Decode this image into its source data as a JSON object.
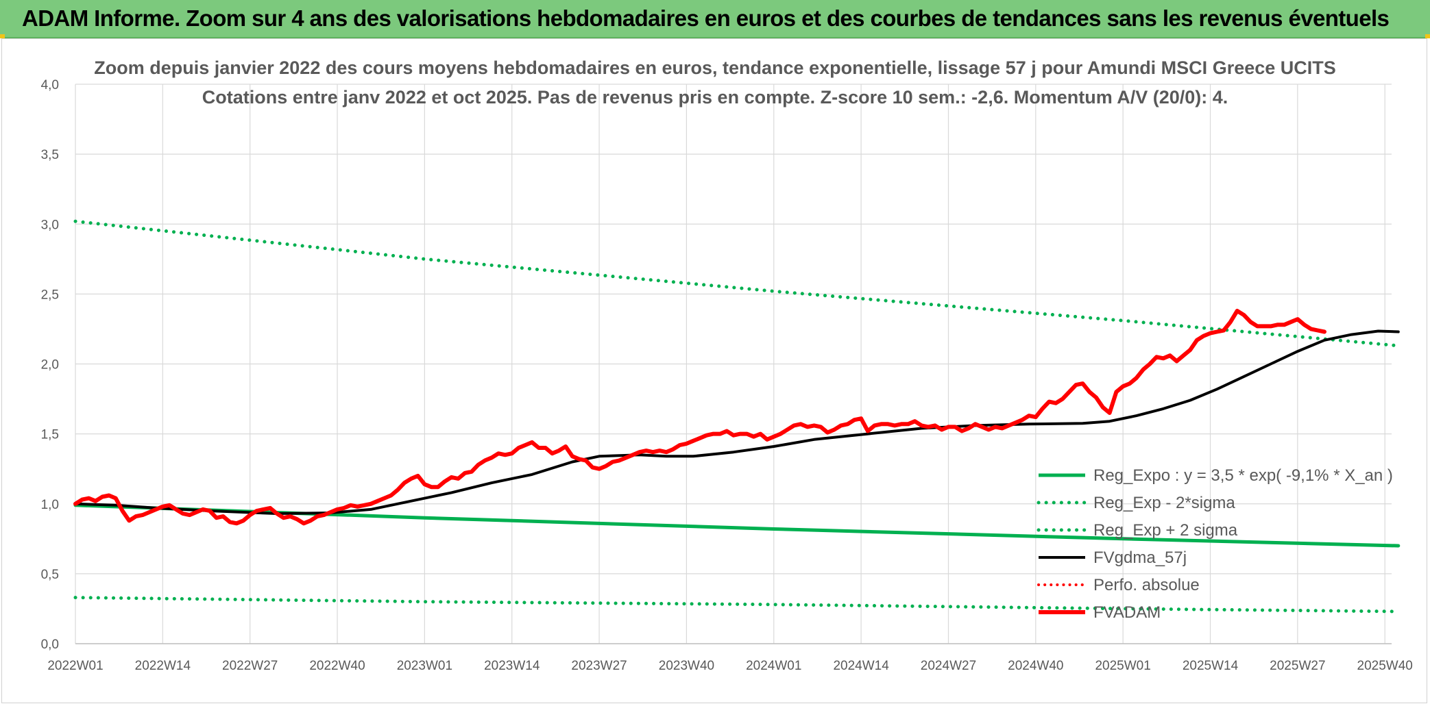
{
  "banner": {
    "title": "ADAM Informe. Zoom sur 4 ans des valorisations hebdomadaires en euros et des courbes de tendances sans les revenus éventuels"
  },
  "colors": {
    "banner_bg": "#7cc97d",
    "green": "#00b050",
    "red": "#ff0000",
    "black": "#000000",
    "grid": "#d9d9d9",
    "text": "#595959"
  },
  "chart_data": {
    "type": "line",
    "title_line1": "Zoom depuis janvier 2022 des cours moyens hebdomadaires en euros, tendance exponentielle, lissage 57 j pour Amundi MSCI Greece UCITS",
    "title_line2": "Cotations entre janv 2022 et oct 2025. Pas de revenus pris en compte. Z-score 10 sem.: -2,6. Momentum A/V (20/0): 4.",
    "x_range": [
      0,
      196
    ],
    "ylim": [
      0,
      4
    ],
    "y_ticks": [
      "0,0",
      "0,5",
      "1,0",
      "1,5",
      "2,0",
      "2,5",
      "3,0",
      "3,5",
      "4,0"
    ],
    "x_ticks": [
      {
        "label": "2022W01",
        "x": 0
      },
      {
        "label": "2022W14",
        "x": 13
      },
      {
        "label": "2022W27",
        "x": 26
      },
      {
        "label": "2022W40",
        "x": 39
      },
      {
        "label": "2023W01",
        "x": 52
      },
      {
        "label": "2023W14",
        "x": 65
      },
      {
        "label": "2023W27",
        "x": 78
      },
      {
        "label": "2023W40",
        "x": 91
      },
      {
        "label": "2024W01",
        "x": 104
      },
      {
        "label": "2024W14",
        "x": 117
      },
      {
        "label": "2024W27",
        "x": 130
      },
      {
        "label": "2024W40",
        "x": 143
      },
      {
        "label": "2025W01",
        "x": 156
      },
      {
        "label": "2025W14",
        "x": 169
      },
      {
        "label": "2025W27",
        "x": 182
      },
      {
        "label": "2025W40",
        "x": 195
      }
    ],
    "grid": true,
    "legend_position": "bottom-right",
    "series": [
      {
        "name": "Reg_Expo : y = 3,5 * exp( -9,1% *  X_an )",
        "style": "solid-green",
        "points": [
          [
            0,
            0.99
          ],
          [
            52,
            0.9
          ],
          [
            104,
            0.82
          ],
          [
            156,
            0.75
          ],
          [
            197,
            0.7
          ]
        ]
      },
      {
        "name": "Reg_Exp - 2*sigma",
        "style": "dotted-green",
        "points": [
          [
            0,
            0.33
          ],
          [
            52,
            0.3
          ],
          [
            104,
            0.28
          ],
          [
            156,
            0.25
          ],
          [
            197,
            0.23
          ]
        ]
      },
      {
        "name": "Reg_Exp + 2 sigma",
        "style": "dotted-green",
        "points": [
          [
            0,
            3.02
          ],
          [
            52,
            2.75
          ],
          [
            104,
            2.52
          ],
          [
            156,
            2.31
          ],
          [
            197,
            2.13
          ]
        ]
      },
      {
        "name": "FVgdma_57j",
        "style": "solid-black",
        "points": [
          [
            0,
            1.0
          ],
          [
            6,
            0.99
          ],
          [
            12,
            0.97
          ],
          [
            20,
            0.95
          ],
          [
            30,
            0.93
          ],
          [
            38,
            0.935
          ],
          [
            44,
            0.96
          ],
          [
            50,
            1.02
          ],
          [
            56,
            1.08
          ],
          [
            62,
            1.15
          ],
          [
            68,
            1.21
          ],
          [
            74,
            1.3
          ],
          [
            78,
            1.34
          ],
          [
            84,
            1.35
          ],
          [
            88,
            1.34
          ],
          [
            92,
            1.34
          ],
          [
            98,
            1.37
          ],
          [
            104,
            1.41
          ],
          [
            110,
            1.46
          ],
          [
            118,
            1.5
          ],
          [
            126,
            1.54
          ],
          [
            134,
            1.56
          ],
          [
            142,
            1.57
          ],
          [
            150,
            1.575
          ],
          [
            154,
            1.59
          ],
          [
            158,
            1.63
          ],
          [
            162,
            1.68
          ],
          [
            166,
            1.74
          ],
          [
            170,
            1.82
          ],
          [
            174,
            1.91
          ],
          [
            178,
            2.0
          ],
          [
            182,
            2.09
          ],
          [
            186,
            2.17
          ],
          [
            190,
            2.21
          ],
          [
            194,
            2.235
          ],
          [
            197,
            2.23
          ]
        ]
      },
      {
        "name": "Perfo. absolue",
        "style": "dotted-red",
        "points": []
      },
      {
        "name": "FVADAM",
        "style": "solid-red",
        "points": [
          [
            0,
            1.0
          ],
          [
            1,
            1.03
          ],
          [
            2,
            1.04
          ],
          [
            3,
            1.02
          ],
          [
            4,
            1.05
          ],
          [
            5,
            1.06
          ],
          [
            6,
            1.04
          ],
          [
            7,
            0.95
          ],
          [
            8,
            0.88
          ],
          [
            9,
            0.91
          ],
          [
            10,
            0.92
          ],
          [
            11,
            0.94
          ],
          [
            12,
            0.96
          ],
          [
            13,
            0.98
          ],
          [
            14,
            0.99
          ],
          [
            15,
            0.96
          ],
          [
            16,
            0.93
          ],
          [
            17,
            0.92
          ],
          [
            18,
            0.94
          ],
          [
            19,
            0.96
          ],
          [
            20,
            0.95
          ],
          [
            21,
            0.9
          ],
          [
            22,
            0.91
          ],
          [
            23,
            0.87
          ],
          [
            24,
            0.86
          ],
          [
            25,
            0.88
          ],
          [
            26,
            0.92
          ],
          [
            27,
            0.95
          ],
          [
            28,
            0.96
          ],
          [
            29,
            0.97
          ],
          [
            30,
            0.93
          ],
          [
            31,
            0.9
          ],
          [
            32,
            0.91
          ],
          [
            33,
            0.89
          ],
          [
            34,
            0.86
          ],
          [
            35,
            0.88
          ],
          [
            36,
            0.91
          ],
          [
            37,
            0.92
          ],
          [
            38,
            0.94
          ],
          [
            39,
            0.96
          ],
          [
            40,
            0.97
          ],
          [
            41,
            0.99
          ],
          [
            42,
            0.98
          ],
          [
            43,
            0.99
          ],
          [
            44,
            1.0
          ],
          [
            45,
            1.02
          ],
          [
            46,
            1.04
          ],
          [
            47,
            1.06
          ],
          [
            48,
            1.1
          ],
          [
            49,
            1.15
          ],
          [
            50,
            1.18
          ],
          [
            51,
            1.2
          ],
          [
            52,
            1.14
          ],
          [
            53,
            1.12
          ],
          [
            54,
            1.12
          ],
          [
            55,
            1.16
          ],
          [
            56,
            1.19
          ],
          [
            57,
            1.18
          ],
          [
            58,
            1.22
          ],
          [
            59,
            1.23
          ],
          [
            60,
            1.28
          ],
          [
            61,
            1.31
          ],
          [
            62,
            1.33
          ],
          [
            63,
            1.36
          ],
          [
            64,
            1.35
          ],
          [
            65,
            1.36
          ],
          [
            66,
            1.4
          ],
          [
            67,
            1.42
          ],
          [
            68,
            1.44
          ],
          [
            69,
            1.4
          ],
          [
            70,
            1.4
          ],
          [
            71,
            1.36
          ],
          [
            72,
            1.38
          ],
          [
            73,
            1.41
          ],
          [
            74,
            1.34
          ],
          [
            75,
            1.32
          ],
          [
            76,
            1.31
          ],
          [
            77,
            1.26
          ],
          [
            78,
            1.25
          ],
          [
            79,
            1.27
          ],
          [
            80,
            1.3
          ],
          [
            81,
            1.31
          ],
          [
            82,
            1.33
          ],
          [
            83,
            1.35
          ],
          [
            84,
            1.37
          ],
          [
            85,
            1.38
          ],
          [
            86,
            1.37
          ],
          [
            87,
            1.38
          ],
          [
            88,
            1.37
          ],
          [
            89,
            1.39
          ],
          [
            90,
            1.42
          ],
          [
            91,
            1.43
          ],
          [
            92,
            1.45
          ],
          [
            93,
            1.47
          ],
          [
            94,
            1.49
          ],
          [
            95,
            1.5
          ],
          [
            96,
            1.5
          ],
          [
            97,
            1.52
          ],
          [
            98,
            1.49
          ],
          [
            99,
            1.5
          ],
          [
            100,
            1.5
          ],
          [
            101,
            1.48
          ],
          [
            102,
            1.5
          ],
          [
            103,
            1.46
          ],
          [
            104,
            1.48
          ],
          [
            105,
            1.5
          ],
          [
            106,
            1.53
          ],
          [
            107,
            1.56
          ],
          [
            108,
            1.57
          ],
          [
            109,
            1.55
          ],
          [
            110,
            1.56
          ],
          [
            111,
            1.55
          ],
          [
            112,
            1.51
          ],
          [
            113,
            1.53
          ],
          [
            114,
            1.56
          ],
          [
            115,
            1.57
          ],
          [
            116,
            1.6
          ],
          [
            117,
            1.61
          ],
          [
            118,
            1.52
          ],
          [
            119,
            1.56
          ],
          [
            120,
            1.57
          ],
          [
            121,
            1.57
          ],
          [
            122,
            1.56
          ],
          [
            123,
            1.57
          ],
          [
            124,
            1.57
          ],
          [
            125,
            1.59
          ],
          [
            126,
            1.56
          ],
          [
            127,
            1.55
          ],
          [
            128,
            1.56
          ],
          [
            129,
            1.53
          ],
          [
            130,
            1.55
          ],
          [
            131,
            1.55
          ],
          [
            132,
            1.52
          ],
          [
            133,
            1.54
          ],
          [
            134,
            1.57
          ],
          [
            135,
            1.55
          ],
          [
            136,
            1.53
          ],
          [
            137,
            1.55
          ],
          [
            138,
            1.54
          ],
          [
            139,
            1.56
          ],
          [
            140,
            1.58
          ],
          [
            141,
            1.6
          ],
          [
            142,
            1.63
          ],
          [
            143,
            1.62
          ],
          [
            144,
            1.68
          ],
          [
            145,
            1.73
          ],
          [
            146,
            1.72
          ],
          [
            147,
            1.75
          ],
          [
            148,
            1.8
          ],
          [
            149,
            1.85
          ],
          [
            150,
            1.86
          ],
          [
            151,
            1.8
          ],
          [
            152,
            1.76
          ],
          [
            153,
            1.69
          ],
          [
            154,
            1.65
          ],
          [
            155,
            1.8
          ],
          [
            156,
            1.84
          ],
          [
            157,
            1.86
          ],
          [
            158,
            1.9
          ],
          [
            159,
            1.96
          ],
          [
            160,
            2.0
          ],
          [
            161,
            2.05
          ],
          [
            162,
            2.04
          ],
          [
            163,
            2.06
          ],
          [
            164,
            2.02
          ],
          [
            165,
            2.06
          ],
          [
            166,
            2.1
          ],
          [
            167,
            2.17
          ],
          [
            168,
            2.2
          ],
          [
            169,
            2.22
          ],
          [
            170,
            2.23
          ],
          [
            171,
            2.24
          ],
          [
            172,
            2.3
          ],
          [
            173,
            2.38
          ],
          [
            174,
            2.35
          ],
          [
            175,
            2.3
          ],
          [
            176,
            2.27
          ],
          [
            177,
            2.27
          ],
          [
            178,
            2.27
          ],
          [
            179,
            2.28
          ],
          [
            180,
            2.28
          ],
          [
            181,
            2.3
          ],
          [
            182,
            2.32
          ],
          [
            183,
            2.28
          ],
          [
            184,
            2.25
          ],
          [
            185,
            2.24
          ],
          [
            186,
            2.23
          ]
        ]
      }
    ]
  }
}
